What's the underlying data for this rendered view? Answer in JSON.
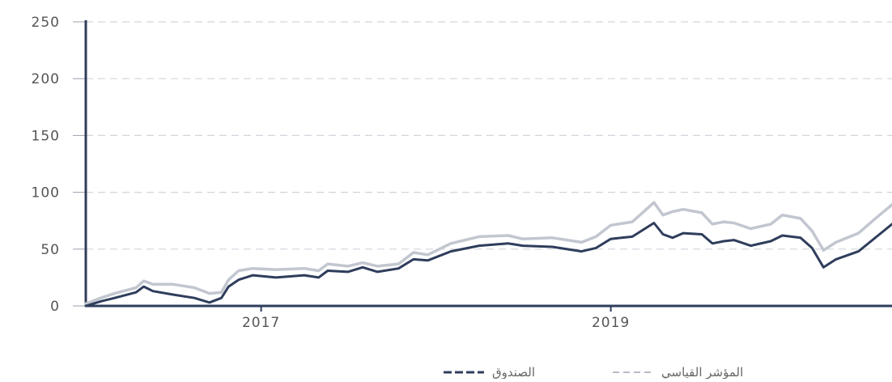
{
  "chart_data": {
    "type": "line",
    "title": "",
    "xlabel": "",
    "ylabel": "",
    "ylim": [
      0,
      250
    ],
    "yticks": [
      0,
      50,
      100,
      150,
      200,
      250
    ],
    "xlim": [
      "2016-01-01",
      "2020-08-10"
    ],
    "xticks": [
      {
        "label": "2017",
        "date": "2017-01-01"
      },
      {
        "label": "2019",
        "date": "2019-01-01"
      }
    ],
    "grid": "horizontal-dashed",
    "legend_position": "bottom",
    "series": [
      {
        "name": "الصندوق",
        "color": "#2f3d5c",
        "style": "solid",
        "points": [
          [
            "2016-01-01",
            0
          ],
          [
            "2016-02-01",
            4
          ],
          [
            "2016-03-01",
            7
          ],
          [
            "2016-04-15",
            12
          ],
          [
            "2016-05-01",
            17
          ],
          [
            "2016-05-20",
            13
          ],
          [
            "2016-07-01",
            10
          ],
          [
            "2016-08-15",
            7
          ],
          [
            "2016-09-15",
            3
          ],
          [
            "2016-10-10",
            7
          ],
          [
            "2016-10-25",
            17
          ],
          [
            "2016-11-15",
            23
          ],
          [
            "2016-12-15",
            27
          ],
          [
            "2017-02-01",
            25
          ],
          [
            "2017-04-01",
            27
          ],
          [
            "2017-05-01",
            25
          ],
          [
            "2017-05-20",
            31
          ],
          [
            "2017-07-01",
            30
          ],
          [
            "2017-08-01",
            34
          ],
          [
            "2017-09-01",
            30
          ],
          [
            "2017-10-15",
            33
          ],
          [
            "2017-11-15",
            41
          ],
          [
            "2017-12-15",
            40
          ],
          [
            "2018-02-01",
            48
          ],
          [
            "2018-04-01",
            53
          ],
          [
            "2018-06-01",
            55
          ],
          [
            "2018-07-01",
            53
          ],
          [
            "2018-09-01",
            52
          ],
          [
            "2018-11-01",
            48
          ],
          [
            "2018-12-01",
            51
          ],
          [
            "2019-01-01",
            59
          ],
          [
            "2019-02-15",
            61
          ],
          [
            "2019-04-01",
            73
          ],
          [
            "2019-04-20",
            63
          ],
          [
            "2019-05-10",
            60
          ],
          [
            "2019-06-01",
            64
          ],
          [
            "2019-07-10",
            63
          ],
          [
            "2019-08-01",
            55
          ],
          [
            "2019-08-25",
            57
          ],
          [
            "2019-09-15",
            58
          ],
          [
            "2019-10-20",
            53
          ],
          [
            "2019-12-01",
            57
          ],
          [
            "2019-12-25",
            62
          ],
          [
            "2020-02-01",
            60
          ],
          [
            "2020-02-25",
            51
          ],
          [
            "2020-03-20",
            34
          ],
          [
            "2020-04-15",
            41
          ],
          [
            "2020-06-01",
            48
          ],
          [
            "2020-07-15",
            63
          ],
          [
            "2020-08-10",
            72
          ]
        ]
      },
      {
        "name": "المؤشر القياسي",
        "color": "#c2c6cf",
        "style": "solid",
        "points": [
          [
            "2016-01-01",
            2
          ],
          [
            "2016-02-01",
            7
          ],
          [
            "2016-03-01",
            11
          ],
          [
            "2016-04-15",
            16
          ],
          [
            "2016-05-01",
            22
          ],
          [
            "2016-05-20",
            19
          ],
          [
            "2016-07-01",
            19
          ],
          [
            "2016-08-15",
            16
          ],
          [
            "2016-09-15",
            11
          ],
          [
            "2016-10-10",
            12
          ],
          [
            "2016-10-25",
            23
          ],
          [
            "2016-11-15",
            31
          ],
          [
            "2016-12-15",
            33
          ],
          [
            "2017-02-01",
            32
          ],
          [
            "2017-04-01",
            33
          ],
          [
            "2017-05-01",
            31
          ],
          [
            "2017-05-20",
            37
          ],
          [
            "2017-07-01",
            35
          ],
          [
            "2017-08-01",
            38
          ],
          [
            "2017-09-01",
            35
          ],
          [
            "2017-10-15",
            37
          ],
          [
            "2017-11-15",
            47
          ],
          [
            "2017-12-15",
            45
          ],
          [
            "2018-02-01",
            55
          ],
          [
            "2018-04-01",
            61
          ],
          [
            "2018-06-01",
            62
          ],
          [
            "2018-07-01",
            59
          ],
          [
            "2018-09-01",
            60
          ],
          [
            "2018-11-01",
            56
          ],
          [
            "2018-12-01",
            61
          ],
          [
            "2019-01-01",
            71
          ],
          [
            "2019-02-15",
            74
          ],
          [
            "2019-04-01",
            91
          ],
          [
            "2019-04-20",
            80
          ],
          [
            "2019-05-10",
            83
          ],
          [
            "2019-06-01",
            85
          ],
          [
            "2019-07-10",
            82
          ],
          [
            "2019-08-01",
            72
          ],
          [
            "2019-08-25",
            74
          ],
          [
            "2019-09-15",
            73
          ],
          [
            "2019-10-20",
            68
          ],
          [
            "2019-12-01",
            72
          ],
          [
            "2019-12-25",
            80
          ],
          [
            "2020-02-01",
            77
          ],
          [
            "2020-02-25",
            66
          ],
          [
            "2020-03-20",
            49
          ],
          [
            "2020-04-15",
            56
          ],
          [
            "2020-06-01",
            64
          ],
          [
            "2020-07-15",
            80
          ],
          [
            "2020-08-10",
            89
          ]
        ]
      }
    ]
  },
  "legend": {
    "fund_label": "الصندوق",
    "benchmark_label": "المؤشر القياسي"
  }
}
